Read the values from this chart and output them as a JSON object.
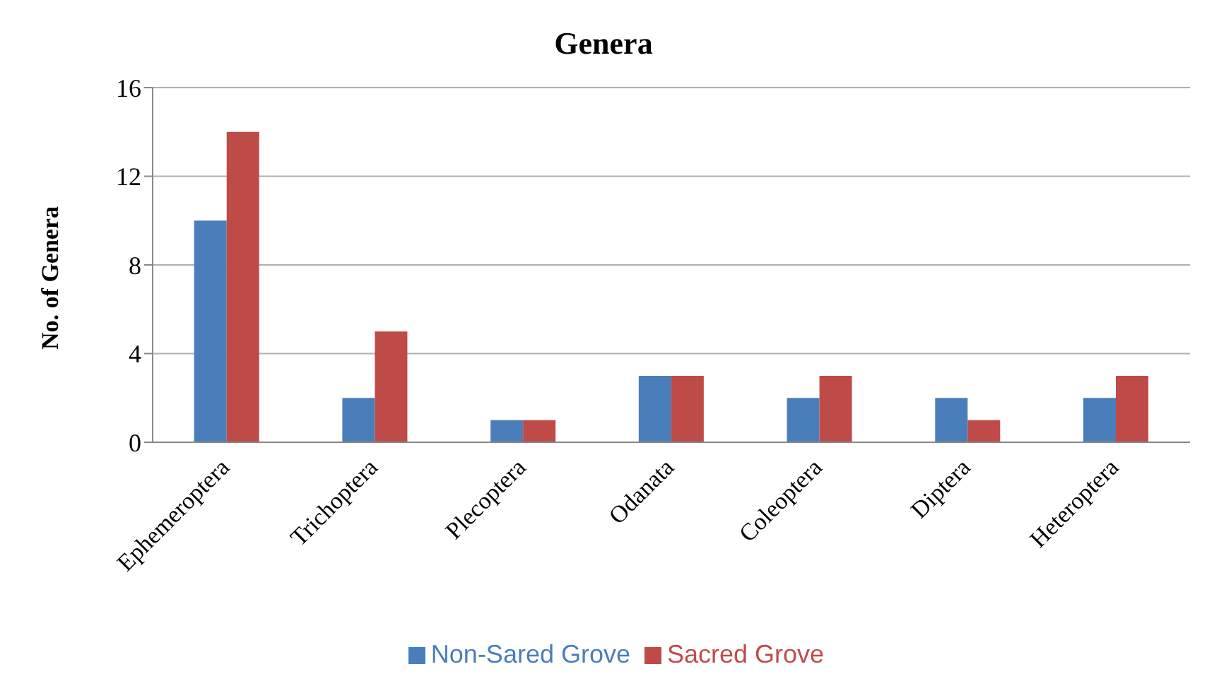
{
  "chart_data": {
    "type": "bar",
    "title": "Genera",
    "ylabel": "No. of Genera",
    "categories": [
      "Ephemeroptera",
      "Trichoptera",
      "Plecoptera",
      "Odanata",
      "Coleoptera",
      "Diptera",
      "Heteroptera"
    ],
    "series": [
      {
        "name": "Non-Sared Grove",
        "color": "#4a7ebb",
        "values": [
          10,
          2,
          1,
          3,
          2,
          2,
          2
        ]
      },
      {
        "name": "Sacred Grove",
        "color": "#be4b48",
        "values": [
          14,
          5,
          1,
          3,
          3,
          1,
          3
        ]
      }
    ],
    "ylim": [
      0,
      16
    ],
    "yticks": [
      0,
      4,
      8,
      12,
      16
    ],
    "grid": "y",
    "legend": "bottom"
  }
}
